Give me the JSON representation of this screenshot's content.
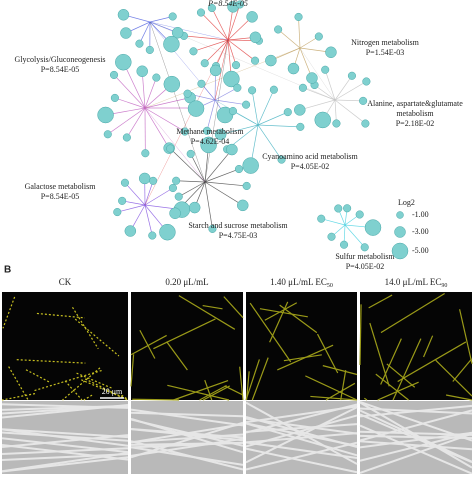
{
  "network": {
    "top_p": "P=8.54E-05",
    "pathways": [
      {
        "lines": [
          "Glycolysis/Gluconeogenesis"
        ],
        "p": "P=8.54E-05"
      },
      {
        "lines": [
          "Nitrogen metabolism"
        ],
        "p": "P=1.54E-03"
      },
      {
        "lines": [
          "Alanine, aspartate&glutamate",
          "metabolism"
        ],
        "p": "P=2.18E-02"
      },
      {
        "lines": [
          "Methane metabolism"
        ],
        "p": "P=4.62E-04"
      },
      {
        "lines": [
          "Cyanoamino acid metabolism"
        ],
        "p": "P=4.05E-02"
      },
      {
        "lines": [
          "Galactose metabolism"
        ],
        "p": "P=8.54E-05"
      },
      {
        "lines": [
          "Starch and sucrose metabolism"
        ],
        "p": "P=4.75E-03"
      },
      {
        "lines": [
          "Sulfur metabolism"
        ],
        "p": "P=4.05E-02"
      }
    ],
    "legend": {
      "title": "Log2",
      "items": [
        "-1.00",
        "-3.00",
        "-5.00"
      ]
    }
  },
  "panel_b": {
    "label": "B",
    "columns": [
      {
        "text": "CK"
      },
      {
        "text": "0.20 μL/mL"
      },
      {
        "text": "1.40 μL/mL EC",
        "sub": "50"
      },
      {
        "text": "14.0 μL/mL EC",
        "sub": "90"
      }
    ],
    "scale_bar": "20 μm"
  }
}
